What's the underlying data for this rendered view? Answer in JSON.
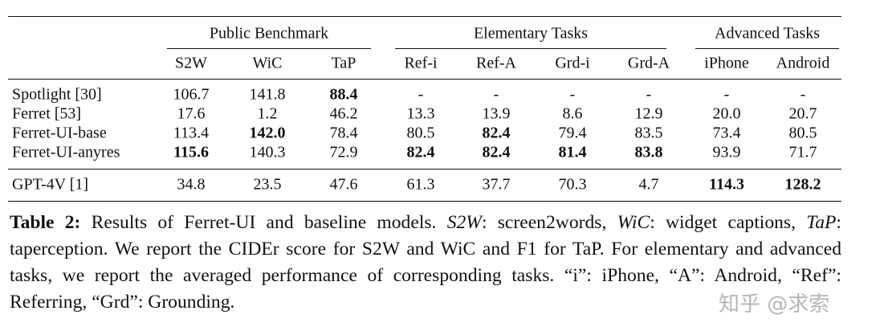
{
  "table": {
    "groups": [
      "Public Benchmark",
      "Elementary Tasks",
      "Advanced Tasks"
    ],
    "columns": [
      "S2W",
      "WiC",
      "TaP",
      "Ref-i",
      "Ref-A",
      "Grd-i",
      "Grd-A",
      "iPhone",
      "Android"
    ],
    "rows": [
      {
        "label": "Spotlight [30]",
        "cells": [
          "106.7",
          "141.8",
          {
            "text": "88.4",
            "bold": true
          },
          "-",
          "-",
          "-",
          "-",
          "-",
          "-"
        ]
      },
      {
        "label": "Ferret [53]",
        "cells": [
          "17.6",
          "1.2",
          "46.2",
          "13.3",
          "13.9",
          "8.6",
          "12.9",
          "20.0",
          "20.7"
        ]
      },
      {
        "label": "Ferret-UI-base",
        "cells": [
          "113.4",
          {
            "text": "142.0",
            "bold": true
          },
          "78.4",
          "80.5",
          {
            "text": "82.4",
            "bold": true
          },
          "79.4",
          "83.5",
          "73.4",
          "80.5"
        ]
      },
      {
        "label": "Ferret-UI-anyres",
        "cells": [
          {
            "text": "115.6",
            "bold": true
          },
          "140.3",
          "72.9",
          {
            "text": "82.4",
            "bold": true
          },
          {
            "text": "82.4",
            "bold": true
          },
          {
            "text": "81.4",
            "bold": true
          },
          {
            "text": "83.8",
            "bold": true
          },
          "93.9",
          "71.7"
        ]
      },
      {
        "label": "GPT-4V [1]",
        "cells": [
          "34.8",
          "23.5",
          "47.6",
          "61.3",
          "37.7",
          "70.3",
          "4.7",
          {
            "text": "114.3",
            "bold": true
          },
          {
            "text": "128.2",
            "bold": true
          }
        ]
      }
    ]
  },
  "caption": [
    {
      "text": "Table 2:",
      "bold": true
    },
    {
      "text": " Results of Ferret-UI and baseline models. "
    },
    {
      "text": "S2W",
      "italic": true
    },
    {
      "text": ": screen2words, "
    },
    {
      "text": "WiC",
      "italic": true
    },
    {
      "text": ": widget captions, "
    },
    {
      "text": "TaP",
      "italic": true
    },
    {
      "text": ": taperception. We report the CIDEr score for S2W and WiC and F1 for TaP. For elementary and advanced tasks, we report the averaged performance of corresponding tasks. “i”: iPhone, “A”: Android, “Ref”: Referring, “Grd”: Grounding."
    }
  ],
  "watermark": "知乎 @求索"
}
